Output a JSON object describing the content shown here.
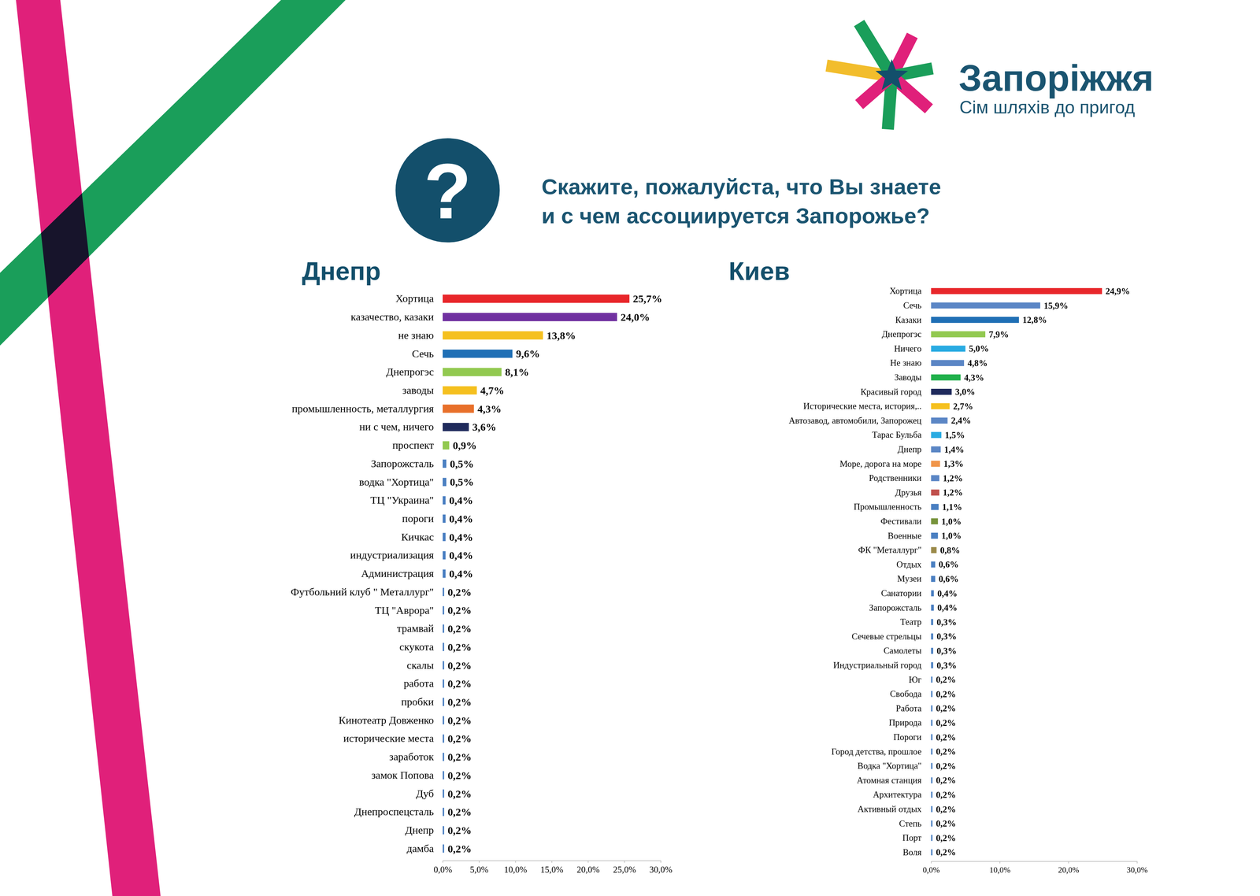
{
  "header": {
    "brand": "Запоріжжя",
    "slogan": "Сім шляхів до пригод"
  },
  "question": {
    "icon": "?",
    "lines": [
      "Скажите, пожалуйста, что Вы знаете",
      "и с чем ассоциируется Запорожье?"
    ]
  },
  "chart_data": [
    {
      "type": "bar",
      "title": "Днепр",
      "orientation": "horizontal",
      "data_labels": true,
      "categories": [
        "Хортица",
        "казачество, казаки",
        "не знаю",
        "Сечь",
        "Днепрогэс",
        "заводы",
        "промышленность, металлургия",
        "ни с чем, ничего",
        "проспект",
        "Запорожсталь",
        "водка \"Хортица\"",
        "ТЦ \"Украина\"",
        "пороги",
        "Кичкас",
        "индустриализация",
        "Администрация",
        "Футбольний клуб \" Металлург\"",
        "ТЦ \"Аврора\"",
        "трамвай",
        "скукота",
        "скалы",
        "работа",
        "пробки",
        "Кинотеатр Довженко",
        "исторические места",
        "заработок",
        "замок Попова",
        "Дуб",
        "Днепроспецсталь",
        "Днепр",
        "дамба"
      ],
      "values": [
        25.7,
        24.0,
        13.8,
        9.6,
        8.1,
        4.7,
        4.3,
        3.6,
        0.9,
        0.5,
        0.5,
        0.4,
        0.4,
        0.4,
        0.4,
        0.4,
        0.2,
        0.2,
        0.2,
        0.2,
        0.2,
        0.2,
        0.2,
        0.2,
        0.2,
        0.2,
        0.2,
        0.2,
        0.2,
        0.2,
        0.2
      ],
      "value_labels": [
        "25,7%",
        "24,0%",
        "13,8%",
        "9,6%",
        "8,1%",
        "4,7%",
        "4,3%",
        "3,6%",
        "0,9%",
        "0,5%",
        "0,5%",
        "0,4%",
        "0,4%",
        "0,4%",
        "0,4%",
        "0,4%",
        "0,2%",
        "0,2%",
        "0,2%",
        "0,2%",
        "0,2%",
        "0,2%",
        "0,2%",
        "0,2%",
        "0,2%",
        "0,2%",
        "0,2%",
        "0,2%",
        "0,2%",
        "0,2%",
        "0,2%"
      ],
      "colors": [
        "#e8262a",
        "#7030a0",
        "#f5c01f",
        "#1f6fb5",
        "#92c950",
        "#f5c01f",
        "#e8702a",
        "#1f2a5c",
        "#92c950",
        "#4a7fc1",
        "#4a7fc1",
        "#4a7fc1",
        "#4a7fc1",
        "#4a7fc1",
        "#4a7fc1",
        "#4a7fc1",
        "#4a7fc1",
        "#4a7fc1",
        "#4a7fc1",
        "#4a7fc1",
        "#4a7fc1",
        "#4a7fc1",
        "#4a7fc1",
        "#4a7fc1",
        "#4a7fc1",
        "#4a7fc1",
        "#4a7fc1",
        "#4a7fc1",
        "#4a7fc1",
        "#4a7fc1",
        "#4a7fc1"
      ],
      "xlim": [
        0,
        30
      ],
      "xticks": [
        {
          "value": 0,
          "label": "0,0%"
        },
        {
          "value": 5,
          "label": "5,0%"
        },
        {
          "value": 10,
          "label": "10,0%"
        },
        {
          "value": 15,
          "label": "15,0%"
        },
        {
          "value": 20,
          "label": "20,0%"
        },
        {
          "value": 25,
          "label": "25,0%"
        },
        {
          "value": 30,
          "label": "30,0%"
        }
      ]
    },
    {
      "type": "bar",
      "title": "Киев",
      "orientation": "horizontal",
      "data_labels": true,
      "categories": [
        "Хортица",
        "Сечь",
        "Казаки",
        "Днепрогэс",
        "Ничего",
        "Не знаю",
        "Заводы",
        "Красивый город",
        "Исторические места, история,..",
        "Автозавод, автомобили, Запорожец",
        "Тарас Бульба",
        "Днепр",
        "Море, дорога на море",
        "Родственники",
        "Друзья",
        "Промышленность",
        "Фестивали",
        "Военные",
        "ФК \"Металлург\"",
        "Отдых",
        "Музеи",
        "Санатории",
        "Запорожсталь",
        "Театр",
        "Сечевые стрельцы",
        "Самолеты",
        "Индустриальный город",
        "Юг",
        "Свобода",
        "Работа",
        "Природа",
        "Пороги",
        "Город детства, прошлое",
        "Водка \"Хортица\"",
        "Атомная станция",
        "Архитектура",
        "Активный отдых",
        "Степь",
        "Порт",
        "Воля"
      ],
      "values": [
        24.9,
        15.9,
        12.8,
        7.9,
        5.0,
        4.8,
        4.3,
        3.0,
        2.7,
        2.4,
        1.5,
        1.4,
        1.3,
        1.2,
        1.2,
        1.1,
        1.0,
        1.0,
        0.8,
        0.6,
        0.6,
        0.4,
        0.4,
        0.3,
        0.3,
        0.3,
        0.3,
        0.2,
        0.2,
        0.2,
        0.2,
        0.2,
        0.2,
        0.2,
        0.2,
        0.2,
        0.2,
        0.2,
        0.2,
        0.2
      ],
      "value_labels": [
        "24,9%",
        "15,9%",
        "12,8%",
        "7,9%",
        "5,0%",
        "4,8%",
        "4,3%",
        "3,0%",
        "2,7%",
        "2,4%",
        "1,5%",
        "1,4%",
        "1,3%",
        "1,2%",
        "1,2%",
        "1,1%",
        "1,0%",
        "1,0%",
        "0,8%",
        "0,6%",
        "0,6%",
        "0,4%",
        "0,4%",
        "0,3%",
        "0,3%",
        "0,3%",
        "0,3%",
        "0,2%",
        "0,2%",
        "0,2%",
        "0,2%",
        "0,2%",
        "0,2%",
        "0,2%",
        "0,2%",
        "0,2%",
        "0,2%",
        "0,2%",
        "0,2%",
        "0,2%"
      ],
      "colors": [
        "#e8262a",
        "#5b86c5",
        "#1f6fb5",
        "#92c950",
        "#29abe2",
        "#5b86c5",
        "#20b04b",
        "#1f2a5c",
        "#f5c01f",
        "#5b86c5",
        "#29abe2",
        "#5b86c5",
        "#f0954a",
        "#5b86c5",
        "#c0504d",
        "#4a7fc1",
        "#77933c",
        "#4a7fc1",
        "#9b8a4a",
        "#4a7fc1",
        "#4a7fc1",
        "#4a7fc1",
        "#4a7fc1",
        "#4a7fc1",
        "#4a7fc1",
        "#4a7fc1",
        "#4a7fc1",
        "#4a7fc1",
        "#4a7fc1",
        "#4a7fc1",
        "#4a7fc1",
        "#4a7fc1",
        "#4a7fc1",
        "#4a7fc1",
        "#4a7fc1",
        "#4a7fc1",
        "#4a7fc1",
        "#4a7fc1",
        "#4a7fc1",
        "#4a7fc1"
      ],
      "xlim": [
        0,
        30
      ],
      "xticks": [
        {
          "value": 0,
          "label": "0,0%"
        },
        {
          "value": 10,
          "label": "10,0%"
        },
        {
          "value": 20,
          "label": "20,0%"
        },
        {
          "value": 30,
          "label": "30,0%"
        }
      ]
    }
  ]
}
